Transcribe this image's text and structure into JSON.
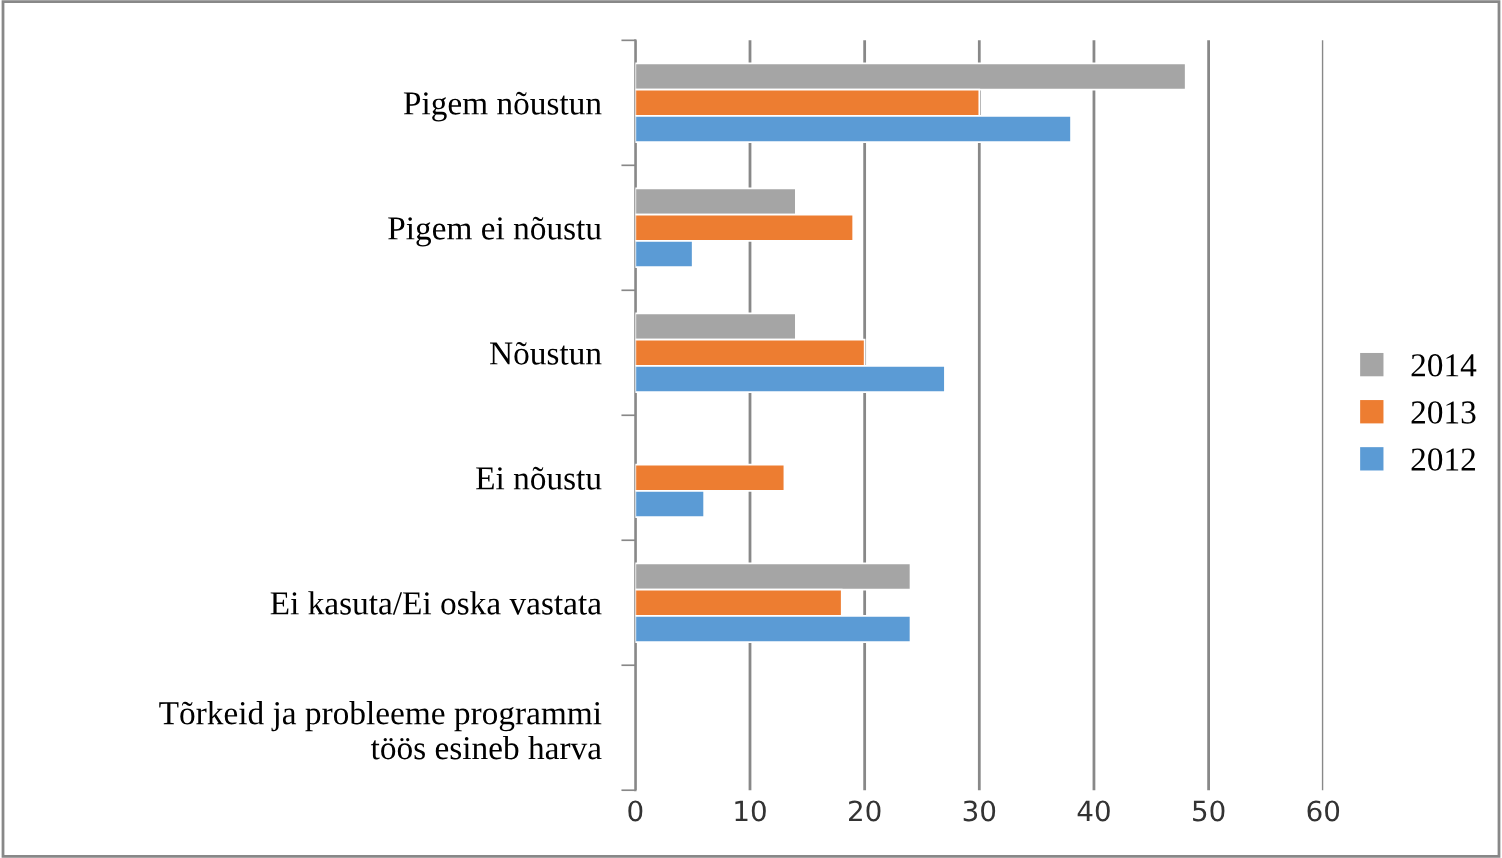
{
  "chart_data": {
    "type": "bar",
    "orientation": "horizontal",
    "categories": [
      "Pigem nõustun",
      "Pigem ei nõustu",
      "Nõustun",
      "Ei nõustu",
      "Ei kasuta/Ei oska vastata",
      "Tõrkeid ja probleeme programmi\ntöös esineb harva"
    ],
    "series": [
      {
        "name": "2014",
        "color": "#a5a5a5",
        "values": [
          48,
          14,
          14,
          null,
          24,
          null
        ]
      },
      {
        "name": "2013",
        "color": "#ed7d31",
        "values": [
          30,
          19,
          20,
          13,
          18,
          null
        ]
      },
      {
        "name": "2012",
        "color": "#5b9bd5",
        "values": [
          38,
          5,
          27,
          6,
          24,
          null
        ]
      }
    ],
    "xlim": [
      0,
      60
    ],
    "xticks": [
      0,
      10,
      20,
      30,
      40,
      50,
      60
    ],
    "grid": "x",
    "legend": "right"
  }
}
